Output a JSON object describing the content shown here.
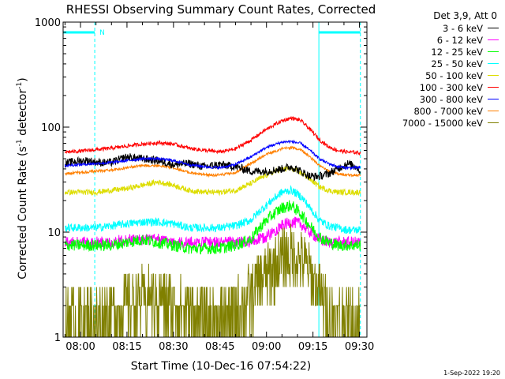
{
  "chart_data": {
    "type": "line",
    "title": "RHESSI Observing Summary Count Rates, Corrected",
    "xlabel": "Start Time (10-Dec-16 07:54:22)",
    "ylabel_main": "Corrected Count Rate (s",
    "ylabel_sup1": "-1",
    "ylabel_mid": " detector",
    "ylabel_sup2": "-1",
    "ylabel_end": ")",
    "yscale": "log",
    "ylim": [
      1,
      1000
    ],
    "xlim_minutes": [
      474.4,
      572.4
    ],
    "x_ticks": [
      {
        "label": "08:00",
        "minutes": 480
      },
      {
        "label": "08:15",
        "minutes": 495
      },
      {
        "label": "08:30",
        "minutes": 510
      },
      {
        "label": "08:45",
        "minutes": 525
      },
      {
        "label": "09:00",
        "minutes": 540
      },
      {
        "label": "09:15",
        "minutes": 555
      },
      {
        "label": "09:30",
        "minutes": 570
      }
    ],
    "y_ticks": [
      {
        "label": "1",
        "value": 1
      },
      {
        "label": "10",
        "value": 10
      },
      {
        "label": "100",
        "value": 100
      },
      {
        "label": "1000",
        "value": 1000
      }
    ],
    "legend_title": "Det 3,9, Att 0",
    "night_marker_label": "N",
    "night_intervals_minutes": [
      [
        474.4,
        484.6
      ],
      [
        556.9,
        570.3
      ]
    ],
    "series": [
      {
        "name": "3 - 6 keV",
        "color": "#000000",
        "x": [
          475,
          478,
          482,
          486,
          490,
          495,
          500,
          505,
          510,
          515,
          520,
          525,
          530,
          535,
          540,
          545,
          548,
          551,
          554,
          557,
          560,
          563,
          566,
          569,
          570.3
        ],
        "y": [
          45,
          47,
          48,
          46,
          46,
          52,
          50,
          48,
          44,
          45,
          42,
          44,
          42,
          38,
          38,
          40,
          42,
          38,
          34,
          34,
          36,
          40,
          45,
          42,
          38
        ]
      },
      {
        "name": "6 - 12 keV",
        "color": "#ff00ff",
        "x": [
          475,
          480,
          485,
          490,
          495,
          500,
          505,
          510,
          515,
          520,
          525,
          530,
          535,
          540,
          545,
          548,
          551,
          554,
          557,
          560,
          563,
          566,
          570.3
        ],
        "y": [
          8,
          8,
          8,
          8,
          8.5,
          8.5,
          8.5,
          8,
          8,
          8,
          8,
          8,
          8,
          9,
          11.5,
          12.5,
          12,
          10,
          8.5,
          8,
          8,
          8,
          8
        ]
      },
      {
        "name": "12 - 25 keV",
        "color": "#00ff00",
        "x": [
          475,
          480,
          485,
          490,
          495,
          500,
          505,
          510,
          515,
          520,
          525,
          530,
          535,
          540,
          545,
          548,
          551,
          554,
          557,
          560,
          563,
          566,
          570.3
        ],
        "y": [
          7.5,
          7.5,
          7.5,
          7.5,
          8,
          8.5,
          8,
          7.5,
          7,
          7,
          7,
          7.5,
          8.5,
          13,
          17,
          18,
          15,
          11.5,
          9,
          8,
          7.5,
          7.5,
          7.5
        ]
      },
      {
        "name": "25 - 50 keV",
        "color": "#00ffff",
        "x": [
          475,
          480,
          485,
          490,
          495,
          500,
          505,
          510,
          515,
          520,
          525,
          530,
          535,
          540,
          545,
          548,
          551,
          554,
          557,
          560,
          563,
          566,
          570.3
        ],
        "y": [
          11,
          11,
          11,
          11.5,
          12,
          12.5,
          12.5,
          12,
          11,
          11,
          11,
          11.5,
          13,
          18,
          24,
          25,
          22,
          17,
          13,
          11.5,
          11,
          10.5,
          10.5
        ]
      },
      {
        "name": "50 - 100 keV",
        "color": "#dddd00",
        "x": [
          475,
          480,
          485,
          490,
          495,
          500,
          505,
          510,
          515,
          520,
          525,
          530,
          535,
          540,
          545,
          548,
          551,
          554,
          557,
          560,
          563,
          566,
          570.3
        ],
        "y": [
          24,
          24,
          24,
          25,
          26,
          28,
          30,
          28,
          25,
          24,
          24,
          25,
          29,
          35,
          40,
          40,
          37,
          32,
          27,
          25,
          24,
          24,
          24
        ]
      },
      {
        "name": "100 - 300 keV",
        "color": "#ff0000",
        "x": [
          475,
          480,
          485,
          490,
          495,
          500,
          505,
          510,
          515,
          520,
          525,
          530,
          535,
          540,
          545,
          548,
          551,
          554,
          557,
          560,
          563,
          566,
          570.3
        ],
        "y": [
          58,
          59,
          61,
          63,
          66,
          69,
          71,
          69,
          63,
          60,
          58,
          62,
          75,
          95,
          115,
          122,
          116,
          95,
          76,
          65,
          60,
          58,
          57
        ]
      },
      {
        "name": "300 - 800 keV",
        "color": "#0000ff",
        "x": [
          475,
          480,
          485,
          490,
          495,
          500,
          505,
          510,
          515,
          520,
          525,
          530,
          535,
          540,
          545,
          548,
          551,
          554,
          557,
          560,
          563,
          566,
          570.3
        ],
        "y": [
          43,
          44,
          45,
          46,
          48,
          50,
          50,
          48,
          44,
          42,
          41,
          44,
          52,
          64,
          72,
          73,
          70,
          60,
          50,
          45,
          42,
          41,
          41
        ]
      },
      {
        "name": "800 - 7000 keV",
        "color": "#ff8000",
        "x": [
          475,
          480,
          485,
          490,
          495,
          500,
          505,
          510,
          515,
          520,
          525,
          530,
          535,
          540,
          545,
          548,
          551,
          554,
          557,
          560,
          563,
          566,
          570.3
        ],
        "y": [
          36,
          37,
          38,
          39,
          41,
          43,
          43,
          41,
          37,
          35,
          35,
          37,
          45,
          55,
          62,
          64,
          61,
          52,
          43,
          38,
          36,
          35,
          35
        ]
      },
      {
        "name": "7000 - 15000 keV",
        "color": "#808000",
        "x": [
          475,
          480,
          485,
          490,
          495,
          500,
          505,
          510,
          515,
          520,
          525,
          530,
          535,
          540,
          545,
          548,
          551,
          554,
          557,
          560,
          563,
          566,
          570.3
        ],
        "y": [
          1.5,
          1.5,
          1.5,
          1.7,
          2,
          2.3,
          2.3,
          2,
          1.7,
          1.5,
          1.5,
          1.7,
          2.5,
          4,
          5.5,
          6,
          5.5,
          4,
          2.5,
          1.8,
          1.5,
          1.5,
          1.5
        ]
      }
    ]
  },
  "footer": {
    "date_stamp": "1-Sep-2022 19:20"
  }
}
